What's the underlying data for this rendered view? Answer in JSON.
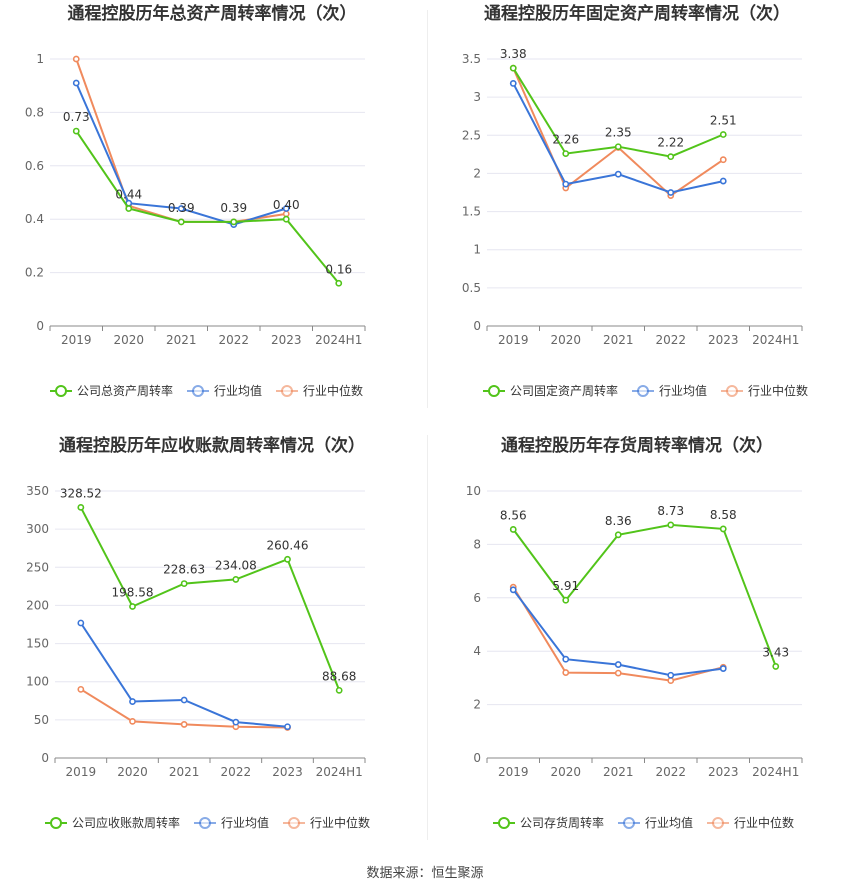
{
  "source": "数据来源：恒生聚源",
  "colors": {
    "company": "#52c41a",
    "avg": "#3a75d8",
    "median": "#f08a5d",
    "grid": "#e6e6f0",
    "axis": "#555555"
  },
  "legend_labels": {
    "avg": "行业均值",
    "median": "行业中位数"
  },
  "chart_data": [
    {
      "type": "line",
      "title": "通程控股历年总资产周转率情况（次）",
      "categories": [
        "2019",
        "2020",
        "2021",
        "2022",
        "2023",
        "2024H1"
      ],
      "ylim": [
        0,
        1
      ],
      "yticks": [
        0,
        0.2,
        0.4,
        0.6,
        0.8,
        1
      ],
      "ytick_labels": [
        "0",
        "0.2",
        "0.4",
        "0.6",
        "0.8",
        "1"
      ],
      "legend_position": "bottom",
      "series": [
        {
          "name": "公司总资产周转率",
          "key": "company",
          "values": [
            0.73,
            0.44,
            0.39,
            0.39,
            0.4,
            0.16
          ],
          "labels": [
            "0.73",
            "0.44",
            "0.39",
            "0.39",
            "0.40",
            "0.16"
          ]
        },
        {
          "name": "行业均值",
          "key": "avg",
          "values": [
            0.91,
            0.46,
            0.44,
            0.38,
            0.44,
            null
          ]
        },
        {
          "name": "行业中位数",
          "key": "median",
          "values": [
            1.0,
            0.45,
            0.39,
            0.39,
            0.42,
            null
          ]
        }
      ]
    },
    {
      "type": "line",
      "title": "通程控股历年固定资产周转率情况（次）",
      "categories": [
        "2019",
        "2020",
        "2021",
        "2022",
        "2023",
        "2024H1"
      ],
      "ylim": [
        0,
        3.5
      ],
      "yticks": [
        0,
        0.5,
        1,
        1.5,
        2,
        2.5,
        3,
        3.5
      ],
      "ytick_labels": [
        "0",
        "0.5",
        "1",
        "1.5",
        "2",
        "2.5",
        "3",
        "3.5"
      ],
      "legend_position": "bottom",
      "series": [
        {
          "name": "公司固定资产周转率",
          "key": "company",
          "values": [
            3.38,
            2.26,
            2.35,
            2.22,
            2.51,
            null
          ],
          "labels": [
            "3.38",
            "2.26",
            "2.35",
            "2.22",
            "2.51",
            ""
          ]
        },
        {
          "name": "行业均值",
          "key": "avg",
          "values": [
            3.18,
            1.86,
            1.99,
            1.75,
            1.9,
            null
          ]
        },
        {
          "name": "行业中位数",
          "key": "median",
          "values": [
            3.38,
            1.81,
            2.34,
            1.71,
            2.18,
            null
          ]
        }
      ]
    },
    {
      "type": "line",
      "title": "通程控股历年应收账款周转率情况（次）",
      "categories": [
        "2019",
        "2020",
        "2021",
        "2022",
        "2023",
        "2024H1"
      ],
      "ylim": [
        0,
        350
      ],
      "yticks": [
        0,
        50,
        100,
        150,
        200,
        250,
        300,
        350
      ],
      "ytick_labels": [
        "0",
        "50",
        "100",
        "150",
        "200",
        "250",
        "300",
        "350"
      ],
      "legend_position": "bottom",
      "series": [
        {
          "name": "公司应收账款周转率",
          "key": "company",
          "values": [
            328.52,
            198.58,
            228.63,
            234.08,
            260.46,
            88.68
          ],
          "labels": [
            "328.52",
            "198.58",
            "228.63",
            "234.08",
            "260.46",
            "88.68"
          ]
        },
        {
          "name": "行业均值",
          "key": "avg",
          "values": [
            177,
            74,
            76,
            47,
            41,
            null
          ]
        },
        {
          "name": "行业中位数",
          "key": "median",
          "values": [
            90,
            48,
            44,
            41,
            40,
            null
          ]
        }
      ]
    },
    {
      "type": "line",
      "title": "通程控股历年存货周转率情况（次）",
      "categories": [
        "2019",
        "2020",
        "2021",
        "2022",
        "2023",
        "2024H1"
      ],
      "ylim": [
        0,
        10
      ],
      "yticks": [
        0,
        2,
        4,
        6,
        8,
        10
      ],
      "ytick_labels": [
        "0",
        "2",
        "4",
        "6",
        "8",
        "10"
      ],
      "legend_position": "bottom",
      "series": [
        {
          "name": "公司存货周转率",
          "key": "company",
          "values": [
            8.56,
            5.91,
            8.36,
            8.73,
            8.58,
            3.43
          ],
          "labels": [
            "8.56",
            "5.91",
            "8.36",
            "8.73",
            "8.58",
            "3.43"
          ]
        },
        {
          "name": "行业均值",
          "key": "avg",
          "values": [
            6.3,
            3.7,
            3.5,
            3.1,
            3.35,
            null
          ]
        },
        {
          "name": "行业中位数",
          "key": "median",
          "values": [
            6.4,
            3.2,
            3.18,
            2.9,
            3.4,
            null
          ]
        }
      ]
    }
  ]
}
